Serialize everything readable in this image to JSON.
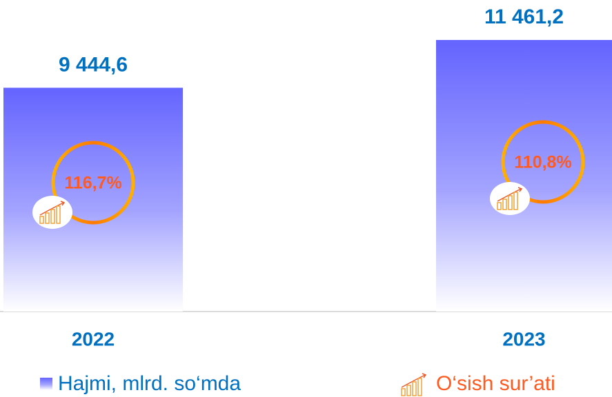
{
  "chart_data": {
    "type": "bar",
    "categories": [
      "2022",
      "2023"
    ],
    "ylim": [
      0,
      12000
    ],
    "series": [
      {
        "name": "Hajmi, mlrd. so‘mda",
        "color": "#6464ff",
        "values": [
          9444.6,
          11461.2
        ],
        "value_labels": [
          "9 444,6",
          "11 461,2"
        ]
      },
      {
        "name": "O‘sish sur’ati",
        "color": "#ff5a1f",
        "values": [
          116.7,
          110.8
        ],
        "value_labels": [
          "116,7%",
          "110,8%"
        ]
      }
    ]
  }
}
